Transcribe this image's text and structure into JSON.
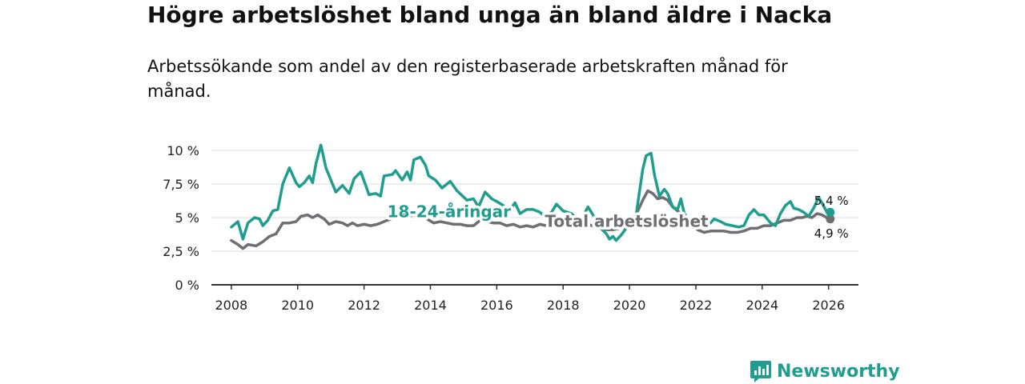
{
  "header": {
    "title": "Högre arbetslöshet bland unga än bland äldre i Nacka",
    "subtitle": "Arbetssökande som andel av den registerbaserade arbetskraften månad för månad."
  },
  "brand": {
    "name": "Newsworthy"
  },
  "colors": {
    "youth": "#1f9d8f",
    "total": "#6e6e73",
    "grid": "#dddddd",
    "axis": "#333333"
  },
  "chart_data": {
    "type": "line",
    "x_ticks": [
      "2008",
      "2010",
      "2012",
      "2014",
      "2016",
      "2018",
      "2020",
      "2022",
      "2024",
      "2026"
    ],
    "y_ticks": [
      "0 %",
      "2,5 %",
      "5 %",
      "7,5 %",
      "10 %"
    ],
    "xlim": [
      2007.4,
      2026.9
    ],
    "ylim": [
      0,
      10
    ],
    "series": [
      {
        "name": "18-24-åringar",
        "key": "youth",
        "end_label": "5,4 %",
        "points": [
          [
            2008.0,
            4.3
          ],
          [
            2008.2,
            4.7
          ],
          [
            2008.35,
            3.4
          ],
          [
            2008.5,
            4.6
          ],
          [
            2008.7,
            5.0
          ],
          [
            2008.85,
            4.9
          ],
          [
            2008.95,
            4.4
          ],
          [
            2009.1,
            4.8
          ],
          [
            2009.25,
            5.5
          ],
          [
            2009.4,
            5.6
          ],
          [
            2009.55,
            7.5
          ],
          [
            2009.75,
            8.7
          ],
          [
            2009.95,
            7.6
          ],
          [
            2010.05,
            7.3
          ],
          [
            2010.2,
            7.6
          ],
          [
            2010.35,
            8.1
          ],
          [
            2010.45,
            7.6
          ],
          [
            2010.55,
            9.0
          ],
          [
            2010.7,
            10.4
          ],
          [
            2010.85,
            8.7
          ],
          [
            2011.0,
            7.8
          ],
          [
            2011.15,
            6.9
          ],
          [
            2011.35,
            7.4
          ],
          [
            2011.55,
            6.8
          ],
          [
            2011.7,
            7.9
          ],
          [
            2011.9,
            8.4
          ],
          [
            2012.05,
            7.4
          ],
          [
            2012.15,
            6.7
          ],
          [
            2012.35,
            6.8
          ],
          [
            2012.5,
            6.6
          ],
          [
            2012.6,
            8.1
          ],
          [
            2012.85,
            8.2
          ],
          [
            2012.95,
            8.5
          ],
          [
            2013.15,
            7.8
          ],
          [
            2013.3,
            8.4
          ],
          [
            2013.4,
            7.8
          ],
          [
            2013.5,
            9.3
          ],
          [
            2013.7,
            9.5
          ],
          [
            2013.85,
            8.9
          ],
          [
            2013.95,
            8.1
          ],
          [
            2014.15,
            7.8
          ],
          [
            2014.35,
            7.2
          ],
          [
            2014.6,
            7.7
          ],
          [
            2014.8,
            7.0
          ],
          [
            2015.1,
            6.3
          ],
          [
            2015.3,
            6.4
          ],
          [
            2015.45,
            5.8
          ],
          [
            2015.65,
            6.9
          ],
          [
            2015.85,
            6.4
          ],
          [
            2016.0,
            6.2
          ],
          [
            2016.2,
            5.9
          ],
          [
            2016.35,
            5.4
          ],
          [
            2016.55,
            6.1
          ],
          [
            2016.7,
            5.3
          ],
          [
            2016.9,
            5.6
          ],
          [
            2017.1,
            5.6
          ],
          [
            2017.3,
            5.4
          ],
          [
            2017.45,
            5.1
          ],
          [
            2017.65,
            5.4
          ],
          [
            2017.8,
            6.0
          ],
          [
            2018.0,
            5.5
          ],
          [
            2018.25,
            5.3
          ],
          [
            2018.45,
            4.8
          ],
          [
            2018.6,
            5.1
          ],
          [
            2018.75,
            5.8
          ],
          [
            2018.95,
            5.0
          ],
          [
            2019.1,
            4.3
          ],
          [
            2019.3,
            3.8
          ],
          [
            2019.4,
            3.4
          ],
          [
            2019.5,
            3.6
          ],
          [
            2019.6,
            3.3
          ],
          [
            2019.75,
            3.7
          ],
          [
            2019.9,
            4.2
          ],
          [
            2020.0,
            4.6
          ],
          [
            2020.2,
            5.2
          ],
          [
            2020.3,
            6.9
          ],
          [
            2020.4,
            8.6
          ],
          [
            2020.5,
            9.6
          ],
          [
            2020.65,
            9.8
          ],
          [
            2020.75,
            8.2
          ],
          [
            2020.9,
            6.6
          ],
          [
            2021.05,
            7.1
          ],
          [
            2021.15,
            6.8
          ],
          [
            2021.3,
            5.8
          ],
          [
            2021.45,
            5.6
          ],
          [
            2021.55,
            6.4
          ],
          [
            2021.65,
            5.3
          ],
          [
            2021.85,
            4.7
          ],
          [
            2022.05,
            4.4
          ],
          [
            2022.25,
            4.6
          ],
          [
            2022.4,
            4.5
          ],
          [
            2022.55,
            4.9
          ],
          [
            2022.75,
            4.7
          ],
          [
            2022.9,
            4.5
          ],
          [
            2023.1,
            4.4
          ],
          [
            2023.3,
            4.3
          ],
          [
            2023.45,
            4.4
          ],
          [
            2023.6,
            5.2
          ],
          [
            2023.75,
            5.6
          ],
          [
            2023.9,
            5.2
          ],
          [
            2024.05,
            5.2
          ],
          [
            2024.25,
            4.6
          ],
          [
            2024.4,
            4.4
          ],
          [
            2024.55,
            5.3
          ],
          [
            2024.7,
            5.9
          ],
          [
            2024.85,
            6.2
          ],
          [
            2024.95,
            5.7
          ],
          [
            2025.1,
            5.6
          ],
          [
            2025.25,
            5.4
          ],
          [
            2025.4,
            5.1
          ],
          [
            2025.55,
            5.7
          ],
          [
            2025.7,
            6.5
          ],
          [
            2025.8,
            6.1
          ],
          [
            2025.95,
            5.4
          ],
          [
            2026.05,
            5.4
          ]
        ]
      },
      {
        "name": "Total arbetslöshet",
        "key": "total",
        "end_label": "4,9 %",
        "points": [
          [
            2008.0,
            3.3
          ],
          [
            2008.2,
            3.0
          ],
          [
            2008.35,
            2.7
          ],
          [
            2008.5,
            3.0
          ],
          [
            2008.75,
            2.9
          ],
          [
            2008.95,
            3.2
          ],
          [
            2009.15,
            3.6
          ],
          [
            2009.35,
            3.8
          ],
          [
            2009.55,
            4.6
          ],
          [
            2009.75,
            4.6
          ],
          [
            2009.95,
            4.7
          ],
          [
            2010.1,
            5.1
          ],
          [
            2010.3,
            5.2
          ],
          [
            2010.45,
            5.0
          ],
          [
            2010.6,
            5.2
          ],
          [
            2010.8,
            4.9
          ],
          [
            2010.95,
            4.5
          ],
          [
            2011.15,
            4.7
          ],
          [
            2011.35,
            4.6
          ],
          [
            2011.5,
            4.4
          ],
          [
            2011.65,
            4.6
          ],
          [
            2011.8,
            4.4
          ],
          [
            2012.0,
            4.5
          ],
          [
            2012.2,
            4.4
          ],
          [
            2012.4,
            4.5
          ],
          [
            2012.6,
            4.7
          ],
          [
            2012.8,
            4.9
          ],
          [
            2013.0,
            5.0
          ],
          [
            2013.2,
            5.2
          ],
          [
            2013.35,
            5.1
          ],
          [
            2013.5,
            5.2
          ],
          [
            2013.7,
            5.0
          ],
          [
            2013.9,
            4.9
          ],
          [
            2014.1,
            4.6
          ],
          [
            2014.3,
            4.7
          ],
          [
            2014.5,
            4.6
          ],
          [
            2014.7,
            4.5
          ],
          [
            2014.9,
            4.5
          ],
          [
            2015.1,
            4.4
          ],
          [
            2015.3,
            4.4
          ],
          [
            2015.5,
            4.8
          ],
          [
            2015.7,
            4.7
          ],
          [
            2015.9,
            4.6
          ],
          [
            2016.1,
            4.6
          ],
          [
            2016.3,
            4.4
          ],
          [
            2016.5,
            4.5
          ],
          [
            2016.7,
            4.3
          ],
          [
            2016.9,
            4.4
          ],
          [
            2017.1,
            4.3
          ],
          [
            2017.3,
            4.5
          ],
          [
            2017.5,
            4.4
          ],
          [
            2017.7,
            4.5
          ],
          [
            2017.9,
            4.6
          ],
          [
            2018.1,
            4.6
          ],
          [
            2018.3,
            4.5
          ],
          [
            2018.5,
            4.4
          ],
          [
            2018.7,
            4.5
          ],
          [
            2018.9,
            4.4
          ],
          [
            2019.1,
            4.2
          ],
          [
            2019.3,
            4.1
          ],
          [
            2019.5,
            4.1
          ],
          [
            2019.7,
            4.2
          ],
          [
            2019.9,
            4.3
          ],
          [
            2020.1,
            4.6
          ],
          [
            2020.25,
            5.5
          ],
          [
            2020.4,
            6.3
          ],
          [
            2020.55,
            7.0
          ],
          [
            2020.7,
            6.8
          ],
          [
            2020.85,
            6.4
          ],
          [
            2021.0,
            6.5
          ],
          [
            2021.15,
            6.3
          ],
          [
            2021.3,
            5.8
          ],
          [
            2021.45,
            5.5
          ],
          [
            2021.65,
            5.1
          ],
          [
            2021.85,
            4.5
          ],
          [
            2022.05,
            4.1
          ],
          [
            2022.25,
            3.9
          ],
          [
            2022.45,
            4.0
          ],
          [
            2022.65,
            4.0
          ],
          [
            2022.85,
            4.0
          ],
          [
            2023.05,
            3.9
          ],
          [
            2023.25,
            3.9
          ],
          [
            2023.45,
            4.0
          ],
          [
            2023.65,
            4.2
          ],
          [
            2023.85,
            4.2
          ],
          [
            2024.05,
            4.4
          ],
          [
            2024.25,
            4.4
          ],
          [
            2024.45,
            4.6
          ],
          [
            2024.65,
            4.8
          ],
          [
            2024.85,
            4.8
          ],
          [
            2025.05,
            5.0
          ],
          [
            2025.2,
            5.0
          ],
          [
            2025.35,
            5.1
          ],
          [
            2025.5,
            5.0
          ],
          [
            2025.65,
            5.3
          ],
          [
            2025.8,
            5.2
          ],
          [
            2025.95,
            5.0
          ],
          [
            2026.05,
            4.9
          ]
        ]
      }
    ]
  }
}
